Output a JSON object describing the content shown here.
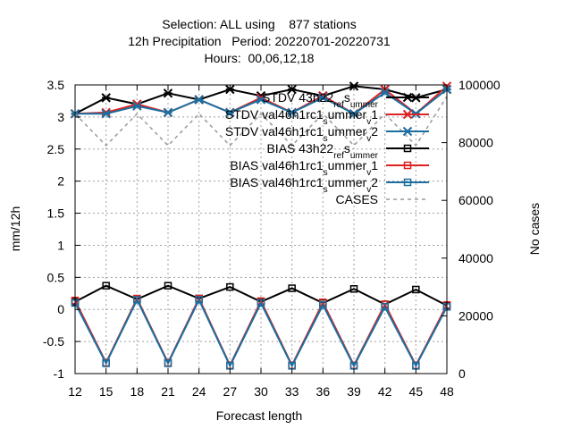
{
  "chart_data": {
    "type": "line",
    "title_lines": [
      "Selection: ALL using    877 stations",
      "12h Precipitation   Period: 20220701-20220731",
      "Hours:  00,06,12,18"
    ],
    "xlabel": "Forecast length",
    "ylabel": "mm/12h",
    "y2label": "No cases",
    "x": [
      12,
      15,
      18,
      21,
      24,
      27,
      30,
      33,
      36,
      39,
      42,
      45,
      48
    ],
    "ylim": [
      -1,
      3.5
    ],
    "y_ticks": [
      "-1",
      "-0.5",
      "0",
      "0.5",
      "1",
      "1.5",
      "2",
      "2.5",
      "3",
      "3.5"
    ],
    "y_tick_values": [
      -1,
      -0.5,
      0,
      0.5,
      1,
      1.5,
      2,
      2.5,
      3,
      3.5
    ],
    "y2lim": [
      0,
      100000
    ],
    "y2_ticks": [
      "0",
      "20000",
      "40000",
      "60000",
      "80000",
      "100000"
    ],
    "y2_tick_values": [
      0,
      20000,
      40000,
      60000,
      80000,
      100000
    ],
    "grid": true,
    "legend_position": "top-right",
    "series": [
      {
        "legend_parts": [
          "STDV 43h22",
          "ref",
          "s",
          "ummer"
        ],
        "axis": "y1",
        "color": "#000000",
        "marker": "star",
        "dash": false,
        "values": [
          3.05,
          3.3,
          3.2,
          3.37,
          3.27,
          3.43,
          3.33,
          3.43,
          3.33,
          3.48,
          3.43,
          3.3,
          3.43
        ]
      },
      {
        "legend_parts": [
          "STDV val46h1rc1",
          "s",
          "ummer",
          "v",
          "1"
        ],
        "axis": "y1",
        "color": "#dd2222",
        "marker": "star",
        "dash": false,
        "values": [
          3.05,
          3.07,
          3.2,
          3.07,
          3.27,
          3.07,
          3.3,
          3.07,
          3.33,
          3.05,
          3.43,
          3.05,
          3.48
        ]
      },
      {
        "legend_parts": [
          "STDV val46h1rc1",
          "s",
          "ummer",
          "v",
          "2"
        ],
        "axis": "y1",
        "color": "#1a6fa0",
        "marker": "star",
        "dash": false,
        "values": [
          3.05,
          3.05,
          3.17,
          3.07,
          3.27,
          3.07,
          3.27,
          3.07,
          3.3,
          3.05,
          3.38,
          3.05,
          3.43
        ]
      },
      {
        "legend_parts": [
          "BIAS 43h22",
          "ref",
          "s",
          "ummer"
        ],
        "axis": "y1",
        "color": "#000000",
        "marker": "square",
        "dash": false,
        "values": [
          0.12,
          0.37,
          0.16,
          0.37,
          0.17,
          0.35,
          0.12,
          0.33,
          0.1,
          0.32,
          0.08,
          0.31,
          0.06
        ]
      },
      {
        "legend_parts": [
          "BIAS val46h1rc1",
          "s",
          "ummer",
          "v",
          "1"
        ],
        "axis": "y1",
        "color": "#dd2222",
        "marker": "square",
        "dash": false,
        "values": [
          0.14,
          -0.83,
          0.17,
          -0.83,
          0.17,
          -0.87,
          0.13,
          -0.87,
          0.11,
          -0.87,
          0.08,
          -0.87,
          0.07
        ]
      },
      {
        "legend_parts": [
          "BIAS val46h1rc1",
          "s",
          "ummer",
          "v",
          "2"
        ],
        "axis": "y1",
        "color": "#1a6fa0",
        "marker": "square",
        "dash": false,
        "values": [
          0.1,
          -0.84,
          0.15,
          -0.84,
          0.15,
          -0.88,
          0.1,
          -0.88,
          0.07,
          -0.88,
          0.04,
          -0.88,
          0.04
        ]
      },
      {
        "legend_parts": [
          "CASES"
        ],
        "axis": "y2",
        "color": "#999999",
        "marker": "none",
        "dash": true,
        "values": [
          90000,
          79000,
          90000,
          79000,
          90000,
          79000,
          90000,
          79000,
          90000,
          79000,
          90000,
          79000,
          96000
        ]
      }
    ]
  }
}
